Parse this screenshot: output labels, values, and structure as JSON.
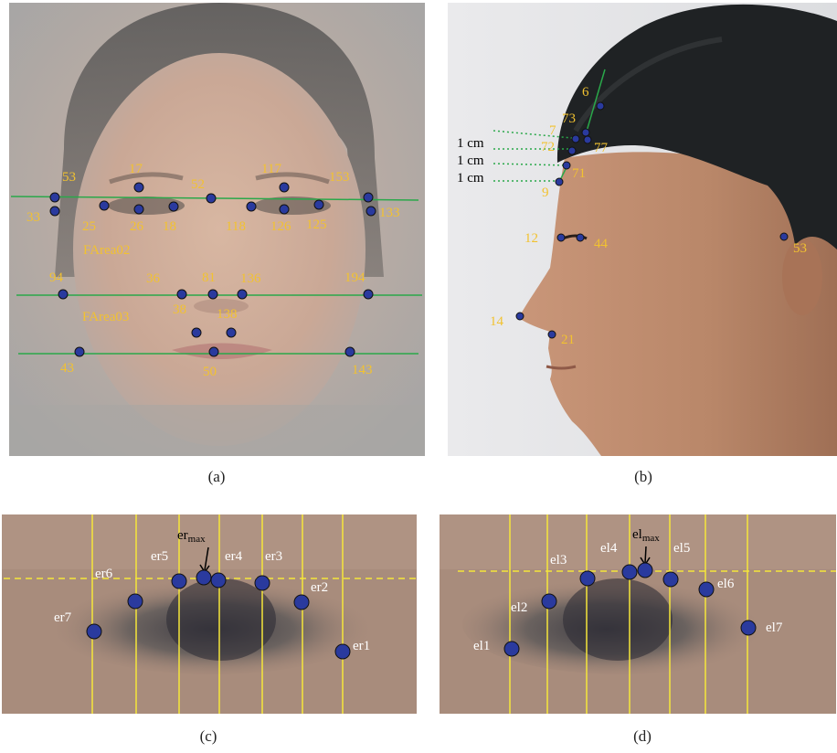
{
  "panel_a": {
    "caption": "(a)",
    "landmarks": [
      "53",
      "17",
      "52",
      "117",
      "153",
      "33",
      "25",
      "26",
      "18",
      "118",
      "126",
      "125",
      "133",
      "94",
      "36",
      "81",
      "136",
      "194",
      "38",
      "138",
      "43",
      "50",
      "143"
    ],
    "area_labels": [
      "FArea02",
      "FArea03"
    ]
  },
  "panel_b": {
    "caption": "(b)",
    "landmarks": [
      "6",
      "73",
      "7",
      "77",
      "72",
      "71",
      "9",
      "12",
      "44",
      "53",
      "14",
      "21"
    ],
    "scale_labels": [
      "1 cm",
      "1 cm",
      "1 cm"
    ]
  },
  "panel_c": {
    "caption": "(c)",
    "points": [
      "er7",
      "er6",
      "er5",
      "er4",
      "er3",
      "er2",
      "er1"
    ],
    "max_label": "er",
    "max_sub": "max"
  },
  "panel_d": {
    "caption": "(d)",
    "points": [
      "el1",
      "el2",
      "el3",
      "el4",
      "el5",
      "el6",
      "el7"
    ],
    "max_label": "el",
    "max_sub": "max"
  },
  "colors": {
    "landmark_fill": "#2a3a9e",
    "label_yellow": "#f2c230",
    "guide_green": "#2aa84a",
    "guide_yellow": "#f5e63a"
  }
}
